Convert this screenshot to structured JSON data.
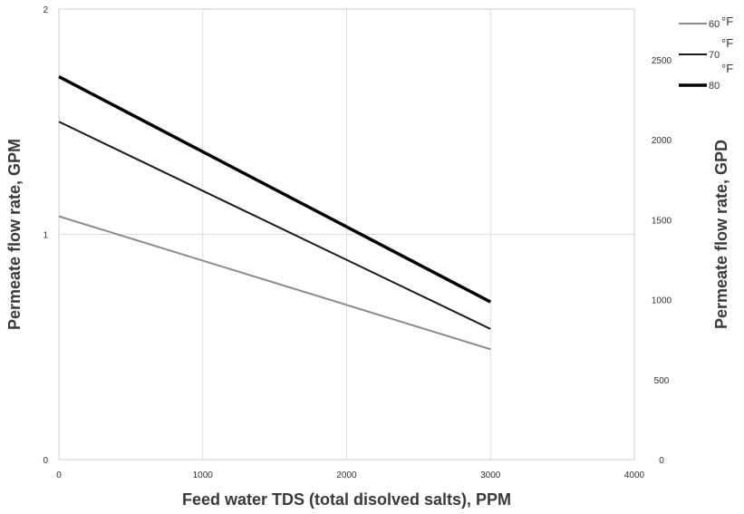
{
  "chart_data": {
    "type": "line",
    "xlabel": "Feed water TDS (total disolved salts), PPM",
    "ylabel": "Permeate flow rate, GPM",
    "y2label": "Permeate flow rate, GPD",
    "xlim": [
      0,
      4000
    ],
    "ylim": [
      0,
      2
    ],
    "y2lim": [
      0,
      2816
    ],
    "x_ticks": [
      0,
      1000,
      2000,
      3000,
      4000
    ],
    "y_ticks": [
      0,
      1,
      2
    ],
    "y2_ticks": [
      0,
      500,
      1000,
      1500,
      2000,
      2500
    ],
    "grid": true,
    "legend_position": "top-right",
    "series": [
      {
        "name": "60",
        "unit": "°F",
        "color": "#8c8c8c",
        "width": 2,
        "x": [
          0,
          3000
        ],
        "y": [
          1.08,
          0.49
        ]
      },
      {
        "name": "70",
        "unit": "°F",
        "color": "#1a1a1a",
        "width": 2,
        "x": [
          0,
          3000
        ],
        "y": [
          1.5,
          0.58
        ]
      },
      {
        "name": "80",
        "unit": "°F",
        "color": "#000000",
        "width": 3.5,
        "x": [
          0,
          3000
        ],
        "y": [
          1.7,
          0.7
        ]
      }
    ]
  }
}
